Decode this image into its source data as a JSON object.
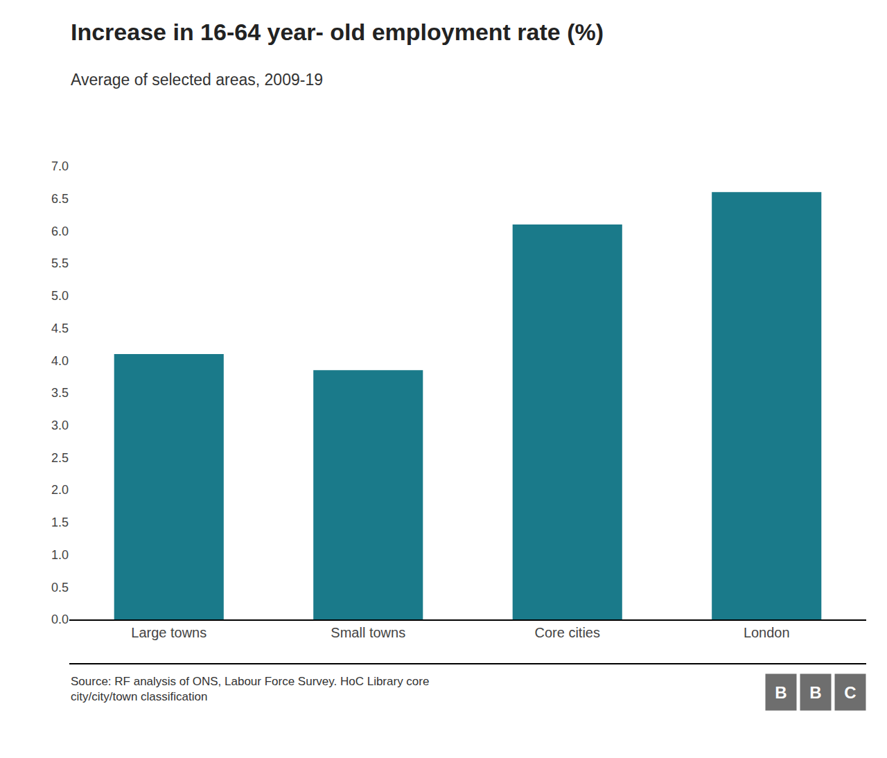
{
  "chart_data": {
    "type": "bar",
    "title": "Increase in 16-64 year- old employment rate (%)",
    "subtitle": "Average of selected areas, 2009-19",
    "categories": [
      "Large towns",
      "Small towns",
      "Core cities",
      "London"
    ],
    "values": [
      4.1,
      3.85,
      6.1,
      6.6
    ],
    "color": "#1a7a8a",
    "ylim": [
      0,
      7.0
    ],
    "yticks": [
      {
        "value": 0,
        "label": "0.0"
      },
      0.5,
      {
        "value": 1,
        "label": "1.0"
      },
      1.5,
      {
        "value": 2,
        "label": "2.0"
      },
      2.5,
      {
        "value": 3,
        "label": "3.0"
      },
      3.5,
      {
        "value": 4,
        "label": "4.0"
      },
      4.5,
      {
        "value": 5,
        "label": "5.0"
      },
      5.5,
      {
        "value": 6,
        "label": "6.0"
      },
      6.5,
      {
        "value": 7,
        "label": "7.0"
      }
    ],
    "grid": false,
    "source": "Source: RF analysis of ONS, Labour Force Survey. HoC Library core\ncity/city/town classification",
    "logo": {
      "texts": [
        "B",
        "B",
        "C"
      ],
      "color": "#6e6e6e"
    }
  }
}
